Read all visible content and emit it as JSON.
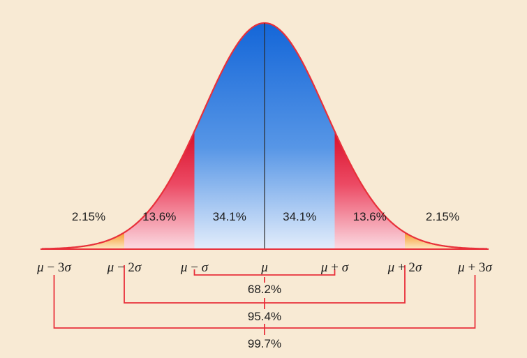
{
  "chart_data": {
    "type": "area",
    "distribution": "normal",
    "x_domain_sigma": [
      -3,
      3
    ],
    "bands": [
      {
        "id": "lt3",
        "from": -3,
        "to": -2,
        "label": "2.15%",
        "value": 2.15,
        "color": "#f5a33a"
      },
      {
        "id": "lt2",
        "from": -2,
        "to": -1,
        "label": "13.6%",
        "value": 13.6,
        "color": "#e8303a"
      },
      {
        "id": "lt1",
        "from": -1,
        "to": 0,
        "label": "34.1%",
        "value": 34.1,
        "color": "#1d74d8"
      },
      {
        "id": "rt1",
        "from": 0,
        "to": 1,
        "label": "34.1%",
        "value": 34.1,
        "color": "#1d74d8"
      },
      {
        "id": "rt2",
        "from": 1,
        "to": 2,
        "label": "13.6%",
        "value": 13.6,
        "color": "#e8303a"
      },
      {
        "id": "rt3",
        "from": 2,
        "to": 3,
        "label": "2.15%",
        "value": 2.15,
        "color": "#f5a33a"
      }
    ],
    "tick_labels": [
      {
        "at": -3,
        "greek": "μ",
        "op": " − 3",
        "sym": "σ"
      },
      {
        "at": -2,
        "greek": "μ",
        "op": " − 2",
        "sym": "σ"
      },
      {
        "at": -1,
        "greek": "μ",
        "op": " − ",
        "sym": "σ"
      },
      {
        "at": 0,
        "greek": "μ",
        "op": "",
        "sym": ""
      },
      {
        "at": 1,
        "greek": "μ",
        "op": " + ",
        "sym": "σ"
      },
      {
        "at": 2,
        "greek": "μ",
        "op": " + 2",
        "sym": "σ"
      },
      {
        "at": 3,
        "greek": "μ",
        "op": " + 3",
        "sym": "σ"
      }
    ],
    "ranges": [
      {
        "k": 1,
        "label": "68.2%",
        "value": 68.2
      },
      {
        "k": 2,
        "label": "95.4%",
        "value": 95.4
      },
      {
        "k": 3,
        "label": "99.7%",
        "value": 99.7
      }
    ],
    "colors": {
      "background": "#f8ead4",
      "curve": "#e8303a",
      "baseline": "#e8303a",
      "bracket": "#e8303a",
      "center_line": "#2a2a2a"
    }
  }
}
